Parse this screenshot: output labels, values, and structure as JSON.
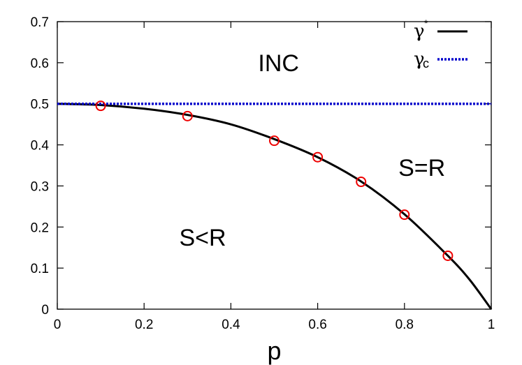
{
  "chart_data": {
    "type": "line",
    "title": "",
    "xlabel": "p",
    "ylabel": "",
    "xlim": [
      0,
      1
    ],
    "ylim": [
      0,
      0.7
    ],
    "xticks": [
      0,
      0.2,
      0.4,
      0.6,
      0.8,
      1
    ],
    "xtick_labels": [
      "0",
      "0.2",
      "0.4",
      "0.6",
      "0.8",
      "1"
    ],
    "yticks": [
      0,
      0.1,
      0.2,
      0.3,
      0.4,
      0.5,
      0.6,
      0.7
    ],
    "ytick_labels": [
      "0",
      "0.1",
      "0.2",
      "0.3",
      "0.4",
      "0.5",
      "0.6",
      "0.7"
    ],
    "grid": false,
    "legend_position": "top-right",
    "series": [
      {
        "name": "γ*",
        "legend_symbol": "γ",
        "legend_superscript": "*",
        "kind": "line",
        "style": "solid",
        "color": "#000000",
        "x": [
          0,
          0.1,
          0.2,
          0.3,
          0.4,
          0.5,
          0.6,
          0.7,
          0.8,
          0.9,
          0.95,
          1.0
        ],
        "y": [
          0.5,
          0.497,
          0.488,
          0.473,
          0.45,
          0.414,
          0.37,
          0.311,
          0.231,
          0.13,
          0.072,
          0.0
        ]
      },
      {
        "name": "γc",
        "legend_symbol": "γ",
        "legend_subscript": "c",
        "kind": "line",
        "style": "dotted",
        "color": "#0000cc",
        "x": [
          0,
          1
        ],
        "y": [
          0.5,
          0.5
        ]
      },
      {
        "name": "",
        "kind": "scatter",
        "marker": "open-circle",
        "color": "#ee0000",
        "x": [
          0.1,
          0.3,
          0.5,
          0.6,
          0.7,
          0.8,
          0.9
        ],
        "y": [
          0.495,
          0.47,
          0.41,
          0.37,
          0.31,
          0.23,
          0.13
        ]
      }
    ],
    "annotations": [
      {
        "text": "INC",
        "x": 0.51,
        "y": 0.6
      },
      {
        "text": "S=R",
        "x": 0.84,
        "y": 0.345
      },
      {
        "text": "S<R",
        "x": 0.335,
        "y": 0.175
      }
    ]
  }
}
